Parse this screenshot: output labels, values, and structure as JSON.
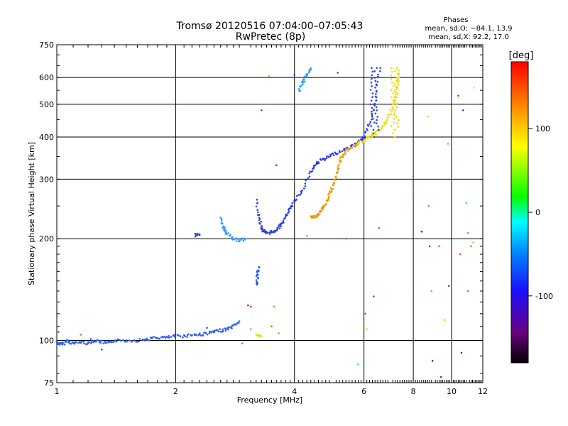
{
  "chart_data": {
    "type": "scatter",
    "title": "Tromsø 20120516 07:04:00–07:05:43",
    "subtitle": "RwPretec (8p)",
    "phases": {
      "header": "Phases",
      "line1": "mean, sd,O: −84.1, 13.9",
      "line2": "mean, sd,X:  92.2, 17.0"
    },
    "xlabel": "Frequency [MHz]",
    "ylabel": "Stationary phase Virtual Height [km]",
    "xscale": "log",
    "yscale": "log",
    "xlim": [
      1,
      12
    ],
    "ylim": [
      75,
      750
    ],
    "xticks": [
      1,
      2,
      4,
      6,
      8,
      10,
      12
    ],
    "yticks": [
      75,
      100,
      200,
      300,
      400,
      500,
      600,
      750
    ],
    "grid": true,
    "colorbar": {
      "label": "[deg]",
      "range": [
        -180,
        180
      ],
      "ticks": [
        100,
        0,
        -100
      ],
      "colors": [
        "#000000",
        "#6a0080",
        "#1a10ff",
        "#0080ff",
        "#00ffff",
        "#00ff00",
        "#ffff00",
        "#ff8000",
        "#ff0000"
      ]
    },
    "series": [
      {
        "color": "#2a5fff",
        "points": [
          [
            1.0,
            99
          ],
          [
            1.03,
            97
          ],
          [
            1.06,
            100
          ],
          [
            1.1,
            98
          ],
          [
            1.15,
            99
          ],
          [
            1.2,
            98
          ],
          [
            1.25,
            100
          ],
          [
            1.3,
            99
          ],
          [
            1.35,
            98
          ],
          [
            1.4,
            100
          ],
          [
            1.5,
            100
          ],
          [
            1.6,
            100
          ],
          [
            1.7,
            101
          ],
          [
            1.8,
            102
          ],
          [
            1.9,
            102
          ],
          [
            2.0,
            103
          ],
          [
            2.1,
            103
          ],
          [
            2.2,
            104
          ],
          [
            2.3,
            104
          ],
          [
            2.4,
            105
          ],
          [
            2.5,
            106
          ],
          [
            2.6,
            107
          ],
          [
            2.7,
            108
          ],
          [
            2.8,
            110
          ],
          [
            2.9,
            114
          ]
        ]
      },
      {
        "color": "#3399ff",
        "points": [
          [
            2.6,
            230
          ],
          [
            2.65,
            215
          ],
          [
            2.7,
            207
          ],
          [
            2.8,
            200
          ],
          [
            2.9,
            198
          ],
          [
            3.0,
            199
          ]
        ]
      },
      {
        "color": "#1e40e0",
        "points": [
          [
            2.25,
            205
          ],
          [
            2.3,
            206
          ]
        ]
      },
      {
        "color": "#2b3fe8",
        "points": [
          [
            3.2,
            260
          ],
          [
            3.25,
            230
          ],
          [
            3.3,
            215
          ],
          [
            3.35,
            210
          ],
          [
            3.4,
            208
          ],
          [
            3.5,
            209
          ],
          [
            3.6,
            213
          ],
          [
            3.7,
            220
          ],
          [
            3.8,
            232
          ],
          [
            3.9,
            245
          ],
          [
            4.0,
            258
          ],
          [
            4.2,
            280
          ],
          [
            4.4,
            315
          ],
          [
            4.5,
            330
          ],
          [
            4.6,
            338
          ],
          [
            4.8,
            345
          ],
          [
            5.0,
            355
          ],
          [
            5.2,
            362
          ],
          [
            5.5,
            372
          ],
          [
            5.8,
            385
          ],
          [
            6.0,
            400
          ],
          [
            6.2,
            440
          ],
          [
            6.4,
            500
          ],
          [
            6.6,
            640
          ]
        ]
      },
      {
        "color": "#2255ee",
        "points": [
          [
            3.2,
            145
          ],
          [
            3.22,
            155
          ],
          [
            3.25,
            165
          ]
        ]
      },
      {
        "color": "#3399ff",
        "points": [
          [
            4.1,
            550
          ],
          [
            4.2,
            580
          ],
          [
            4.3,
            610
          ],
          [
            4.4,
            640
          ]
        ]
      },
      {
        "color": "#ee9a00",
        "points": [
          [
            4.4,
            232
          ],
          [
            4.5,
            232
          ],
          [
            4.6,
            235
          ],
          [
            4.7,
            243
          ],
          [
            4.8,
            255
          ],
          [
            4.9,
            268
          ],
          [
            5.0,
            285
          ],
          [
            5.1,
            310
          ],
          [
            5.2,
            335
          ],
          [
            5.3,
            355
          ],
          [
            5.5,
            370
          ],
          [
            5.8,
            380
          ]
        ]
      },
      {
        "color": "#e8e000",
        "points": [
          [
            5.8,
            382
          ],
          [
            6.0,
            388
          ],
          [
            6.2,
            400
          ],
          [
            6.4,
            410
          ],
          [
            6.6,
            420
          ],
          [
            6.8,
            440
          ],
          [
            7.0,
            470
          ],
          [
            7.2,
            520
          ],
          [
            7.3,
            570
          ],
          [
            7.35,
            630
          ]
        ]
      },
      {
        "color": "#e8e000",
        "points": [
          [
            3.2,
            104
          ],
          [
            3.3,
            103
          ]
        ]
      }
    ],
    "scatter_points": [
      [
        1.01,
        106,
        "#1e60ff"
      ],
      [
        1.15,
        104,
        "#3399ff"
      ],
      [
        1.22,
        101,
        "#2a5fff"
      ],
      [
        1.3,
        94,
        "#3a3acc"
      ],
      [
        2.4,
        109,
        "#2255ee"
      ],
      [
        2.95,
        98,
        "#3399ff"
      ],
      [
        3.05,
        127,
        "#2255ee"
      ],
      [
        3.1,
        126,
        "#ff2200"
      ],
      [
        3.1,
        108,
        "#66cc33"
      ],
      [
        3.5,
        110,
        "#ff4400"
      ],
      [
        3.55,
        126,
        "#ff7a00"
      ],
      [
        3.65,
        105,
        "#ff8800"
      ],
      [
        3.6,
        330,
        "#ff0000"
      ],
      [
        3.3,
        480,
        "#2255ee"
      ],
      [
        3.45,
        605,
        "#ff9900"
      ],
      [
        4.0,
        610,
        "#2255ee"
      ],
      [
        4.3,
        204,
        "#66cc33"
      ],
      [
        5.15,
        620,
        "#3355cc"
      ],
      [
        5.4,
        200,
        "#ff5500"
      ],
      [
        5.8,
        85,
        "#33cccc"
      ],
      [
        6.05,
        120,
        "#ff3300"
      ],
      [
        6.1,
        108,
        "#ffcc00"
      ],
      [
        6.35,
        135,
        "#2255ee"
      ],
      [
        6.55,
        215,
        "#ff4400"
      ],
      [
        8.0,
        275,
        "#ff7700"
      ],
      [
        8.4,
        210,
        "#3333aa"
      ],
      [
        8.7,
        460,
        "#ffcc00"
      ],
      [
        8.75,
        250,
        "#55bb44"
      ],
      [
        8.8,
        190,
        "#dd2200"
      ],
      [
        8.9,
        140,
        "#33cccc"
      ],
      [
        8.95,
        87,
        "#6a0080"
      ],
      [
        9.3,
        190,
        "#ff5500"
      ],
      [
        9.4,
        78,
        "#7a1a8a"
      ],
      [
        9.6,
        115,
        "#ffcc00"
      ],
      [
        9.8,
        382,
        "#33cccc"
      ],
      [
        9.85,
        145,
        "#2255ee"
      ],
      [
        10.4,
        530,
        "#ff2200"
      ],
      [
        10.5,
        180,
        "#ff5500"
      ],
      [
        10.6,
        92,
        "#3333aa"
      ],
      [
        10.7,
        480,
        "#3a3acc"
      ],
      [
        10.9,
        255,
        "#33cccc"
      ],
      [
        11.0,
        208,
        "#ff7a00"
      ],
      [
        11.2,
        190,
        "#3399ff"
      ],
      [
        11.35,
        195,
        "#ffaa00"
      ],
      [
        11.4,
        560,
        "#ffdd00"
      ],
      [
        11.0,
        140,
        "#44aa44"
      ]
    ]
  }
}
